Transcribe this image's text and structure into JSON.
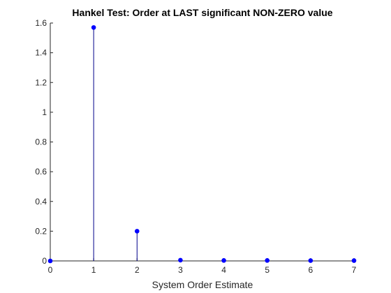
{
  "chart_data": {
    "type": "stem",
    "title": "Hankel Test: Order at LAST significant NON-ZERO value",
    "xlabel": "System Order Estimate",
    "ylabel": "",
    "x": [
      0,
      1,
      2,
      3,
      4,
      5,
      6,
      7
    ],
    "values": [
      0.0,
      1.57,
      0.2,
      0.005,
      0.003,
      0.003,
      0.002,
      0.002
    ],
    "xlim": [
      0,
      7
    ],
    "ylim": [
      0,
      1.6
    ],
    "xticks": [
      0,
      1,
      2,
      3,
      4,
      5,
      6,
      7
    ],
    "xtick_labels": [
      "0",
      "1",
      "2",
      "3",
      "4",
      "5",
      "6",
      "7"
    ],
    "yticks": [
      0,
      0.2,
      0.4,
      0.6,
      0.8,
      1.0,
      1.2,
      1.4,
      1.6
    ],
    "ytick_labels": [
      "0",
      "0.2",
      "0.4",
      "0.6",
      "0.8",
      "1",
      "1.2",
      "1.4",
      "1.6"
    ],
    "grid": false,
    "legend": "none",
    "colors": {
      "stem": "#00008b",
      "marker": "#0000ff",
      "axis": "#262626"
    }
  }
}
